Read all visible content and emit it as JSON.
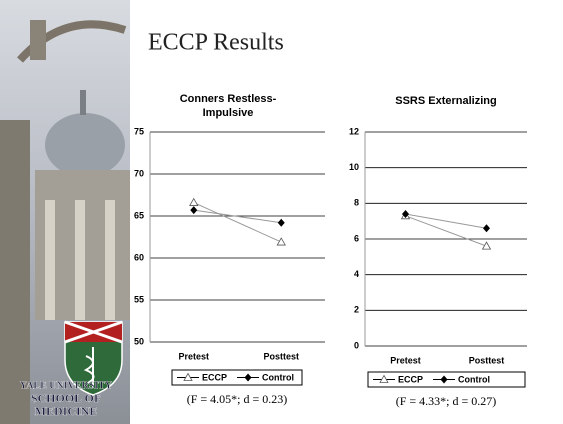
{
  "slide": {
    "title": "ECCP Results",
    "logo_text": [
      "YALE UNIVERSITY",
      "SCHOOL OF",
      "MEDICINE"
    ]
  },
  "chart_data": [
    {
      "type": "line",
      "title": "Conners Restless-Impulsive",
      "categories": [
        "Pretest",
        "Posttest"
      ],
      "series": [
        {
          "name": "ECCP",
          "color": "#999999",
          "marker": "triangle",
          "values": [
            66.6,
            61.9
          ]
        },
        {
          "name": "Control",
          "color": "#999999",
          "marker": "diamond",
          "values": [
            65.7,
            64.2
          ]
        }
      ],
      "ylim": [
        50,
        75
      ],
      "yticks": [
        50,
        55,
        60,
        65,
        70,
        75
      ],
      "grid": true,
      "legend": "bottom",
      "caption": "(F = 4.05*; d = 0.23)"
    },
    {
      "type": "line",
      "title": "SSRS Externalizing",
      "categories": [
        "Pretest",
        "Posttest"
      ],
      "series": [
        {
          "name": "ECCP",
          "color": "#999999",
          "marker": "triangle",
          "values": [
            7.3,
            5.6
          ]
        },
        {
          "name": "Control",
          "color": "#999999",
          "marker": "diamond",
          "values": [
            7.4,
            6.6
          ]
        }
      ],
      "ylim": [
        0,
        12
      ],
      "yticks": [
        0,
        2,
        4,
        6,
        8,
        10,
        12
      ],
      "grid": true,
      "legend": "bottom",
      "caption": "(F = 4.33*; d = 0.27)"
    }
  ]
}
